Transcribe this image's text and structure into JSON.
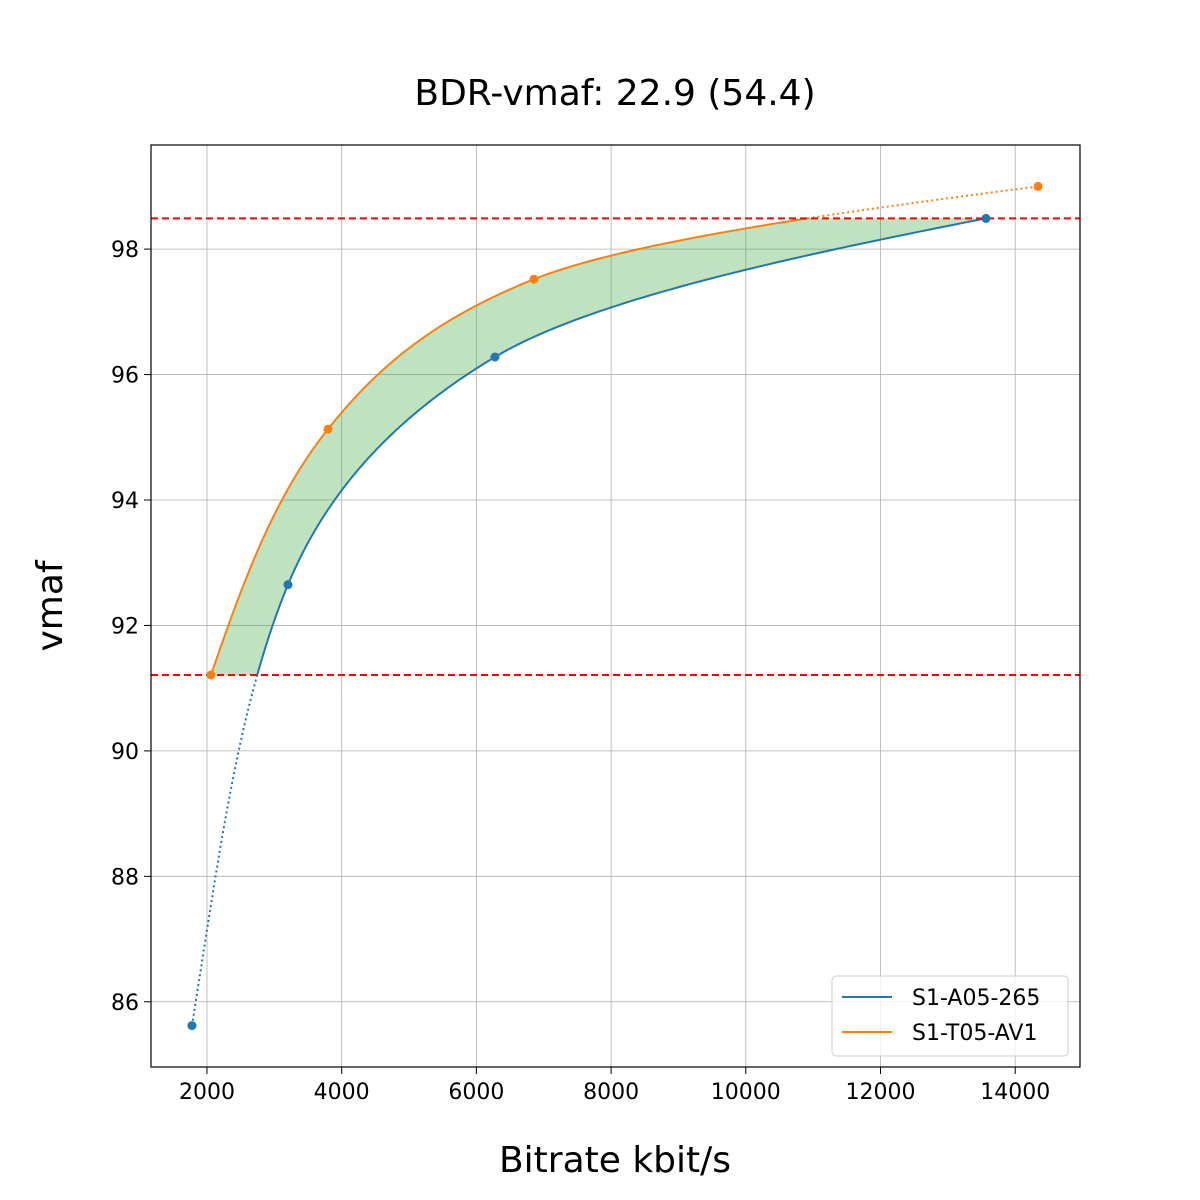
{
  "chart_data": {
    "type": "line",
    "title": "BDR-vmaf: 22.9 (54.4)",
    "xlabel": "Bitrate kbit/s",
    "ylabel": "vmaf",
    "xlim": [
      1169,
      14962
    ],
    "ylim": [
      84.96,
      99.66
    ],
    "xticks": [
      2000,
      4000,
      6000,
      8000,
      10000,
      12000,
      14000
    ],
    "yticks": [
      86,
      88,
      90,
      92,
      94,
      96,
      98
    ],
    "grid": true,
    "legend_position": "bottom-right",
    "hlines": [
      98.49,
      91.21
    ],
    "hline_color": "#ff0000",
    "fill_color": "#2ca02c",
    "series": [
      {
        "name": "S1-A05-265",
        "color": "#1f77b4",
        "x": [
          1777,
          3203,
          6276,
          13566
        ],
        "y": [
          85.62,
          92.65,
          96.28,
          98.49
        ]
      },
      {
        "name": "S1-T05-AV1",
        "color": "#ff7f0e",
        "x": [
          2059,
          3797,
          6855,
          14339
        ],
        "y": [
          91.21,
          95.13,
          97.52,
          99.0
        ]
      }
    ]
  }
}
